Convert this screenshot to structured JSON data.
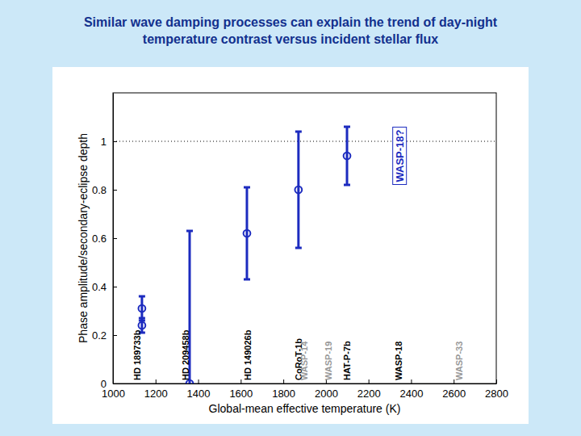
{
  "chart_data": {
    "type": "scatter",
    "title": "Similar wave damping processes can explain the trend of day-night temperature contrast versus incident stellar flux",
    "x_label": "Global-mean effective temperature (K)",
    "y_label": "Phase amplitude/secondary-eclipse depth",
    "x": [
      1136,
      1136,
      1360,
      1629,
      1871,
      2099
    ],
    "values": [
      0.31,
      0.24,
      0,
      0.62,
      0.8,
      0.94
    ],
    "errors": [
      0.05,
      0.03,
      0.63,
      0.19,
      0.24,
      0.12
    ],
    "color": "#1c2bbf",
    "marker": "circle",
    "reference_y": 1,
    "xlim": [
      1000,
      2800
    ],
    "xticks": [
      1000,
      1200,
      1400,
      1600,
      1800,
      2000,
      2200,
      2400,
      2600,
      2800
    ],
    "ylim": [
      0,
      1.2
    ],
    "yticks": [
      0,
      0.2,
      0.4,
      0.6,
      0.8,
      1
    ],
    "grid": false,
    "annotations": [
      {
        "text": "HD 189733b",
        "x": 1117,
        "color": "#000000"
      },
      {
        "text": "HD 209458b",
        "x": 1345,
        "color": "#000000"
      },
      {
        "text": "HD 149026b",
        "x": 1637,
        "color": "#000000"
      },
      {
        "text": "CoRoT-1b",
        "x": 1875,
        "color": "#000000"
      },
      {
        "text": "WASP-14",
        "x": 1902,
        "color": "#999999"
      },
      {
        "text": "WASP-19",
        "x": 2015,
        "color": "#999999"
      },
      {
        "text": "HAT-P-7b",
        "x": 2103,
        "color": "#000000"
      },
      {
        "text": "WASP-18",
        "x": 2345,
        "color": "#000000"
      },
      {
        "text": "WASP-33",
        "x": 2630,
        "color": "#999999"
      },
      {
        "text": "WASP-18?",
        "x": 2350,
        "y": 0.94,
        "color": "#1c2bbf"
      }
    ]
  }
}
